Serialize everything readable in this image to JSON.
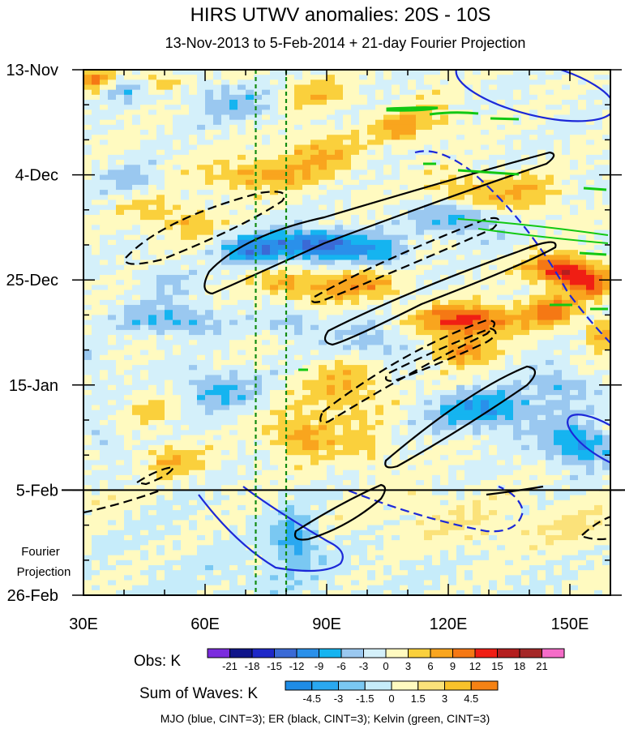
{
  "chart_data": {
    "type": "heatmap",
    "title": "HIRS UTWV anomalies: 20S - 10S",
    "subtitle": "13-Nov-2013 to 5-Feb-2014 + 21-day Fourier Projection",
    "x_axis": {
      "unit": "longitude",
      "range": [
        30,
        160
      ],
      "ticks": [
        {
          "value": 30,
          "label": "30E"
        },
        {
          "value": 60,
          "label": "60E"
        },
        {
          "value": 90,
          "label": "90E"
        },
        {
          "value": 120,
          "label": "120E"
        },
        {
          "value": 150,
          "label": "150E"
        }
      ]
    },
    "y_axis": {
      "unit": "day index from 13-Nov-2013",
      "range": [
        0,
        105
      ],
      "ticks": [
        {
          "value": 0,
          "label": "13-Nov"
        },
        {
          "value": 21,
          "label": "4-Dec"
        },
        {
          "value": 42,
          "label": "25-Dec"
        },
        {
          "value": 63,
          "label": "15-Jan"
        },
        {
          "value": 84,
          "label": "5-Feb"
        },
        {
          "value": 105,
          "label": "26-Feb"
        }
      ]
    },
    "projection_start_day": 84,
    "projection_label_line1": "Fourier",
    "projection_label_line2": "Projection",
    "reference_longitudes": [
      72.5,
      80
    ],
    "obs_field": {
      "colorbar_title": "Obs: K",
      "levels": [
        -21,
        -18,
        -15,
        -12,
        -9,
        -6,
        -3,
        0,
        3,
        6,
        9,
        12,
        15,
        18,
        21
      ],
      "colors": [
        "#7b2cde",
        "#0f148a",
        "#1e28c8",
        "#3a6ad6",
        "#2a90ea",
        "#15b4f0",
        "#9ac8f0",
        "#d4f0fa",
        "#fffac0",
        "#fad03c",
        "#f9a51e",
        "#f57814",
        "#f01e14",
        "#b41e1e",
        "#a52828",
        "#f56cc8"
      ],
      "features": [
        {
          "lon": 33,
          "day": 2,
          "lon_w": 4,
          "day_w": 1.8,
          "amp": 9
        },
        {
          "lon": 40,
          "day": 4,
          "lon_w": 5,
          "day_w": 2,
          "amp": -5
        },
        {
          "lon": 50,
          "day": 2.5,
          "lon_w": 6,
          "day_w": 1.8,
          "amp": 6
        },
        {
          "lon": 62,
          "day": 5,
          "lon_w": 10,
          "day_w": 3,
          "amp": -3
        },
        {
          "lon": 88,
          "day": 5,
          "lon_w": 8,
          "day_w": 3,
          "amp": 5
        },
        {
          "lon": 70,
          "day": 8,
          "lon_w": 10,
          "day_w": 3,
          "amp": -4
        },
        {
          "lon": 88,
          "day": 17,
          "lon_w": 10,
          "day_w": 5,
          "amp": 6
        },
        {
          "lon": 72,
          "day": 21,
          "lon_w": 12,
          "day_w": 3,
          "amp": 7
        },
        {
          "lon": 108,
          "day": 12,
          "lon_w": 6,
          "day_w": 3,
          "amp": 6
        },
        {
          "lon": 116,
          "day": 10,
          "lon_w": 8,
          "day_w": 3,
          "amp": 4
        },
        {
          "lon": 55,
          "day": 30,
          "lon_w": 8,
          "day_w": 3.5,
          "amp": 5
        },
        {
          "lon": 45,
          "day": 28,
          "lon_w": 6,
          "day_w": 3,
          "amp": 3
        },
        {
          "lon": 42,
          "day": 22,
          "lon_w": 7,
          "day_w": 3,
          "amp": -4
        },
        {
          "lon": 88,
          "day": 35,
          "lon_w": 12,
          "day_w": 3,
          "amp": -14
        },
        {
          "lon": 72,
          "day": 36,
          "lon_w": 8,
          "day_w": 3,
          "amp": -9
        },
        {
          "lon": 122,
          "day": 30,
          "lon_w": 10,
          "day_w": 3,
          "amp": -7
        },
        {
          "lon": 104,
          "day": 37,
          "lon_w": 7,
          "day_w": 3,
          "amp": -6
        },
        {
          "lon": 125,
          "day": 24,
          "lon_w": 10,
          "day_w": 3,
          "amp": 6
        },
        {
          "lon": 140,
          "day": 25,
          "lon_w": 8,
          "day_w": 4,
          "amp": 5
        },
        {
          "lon": 148,
          "day": 40,
          "lon_w": 8,
          "day_w": 3,
          "amp": 14
        },
        {
          "lon": 155,
          "day": 43,
          "lon_w": 6,
          "day_w": 3,
          "amp": 10
        },
        {
          "lon": 125,
          "day": 50,
          "lon_w": 12,
          "day_w": 3,
          "amp": 14
        },
        {
          "lon": 145,
          "day": 48,
          "lon_w": 6,
          "day_w": 3,
          "amp": 10
        },
        {
          "lon": 158,
          "day": 53,
          "lon_w": 4,
          "day_w": 3,
          "amp": 8
        },
        {
          "lon": 96,
          "day": 43,
          "lon_w": 12,
          "day_w": 3,
          "amp": 8
        },
        {
          "lon": 80,
          "day": 43,
          "lon_w": 7,
          "day_w": 3,
          "amp": 6
        },
        {
          "lon": 50,
          "day": 42,
          "lon_w": 6,
          "day_w": 3,
          "amp": -4
        },
        {
          "lon": 52,
          "day": 50,
          "lon_w": 12,
          "day_w": 3,
          "amp": -7
        },
        {
          "lon": 82,
          "day": 51,
          "lon_w": 6,
          "day_w": 3,
          "amp": -5
        },
        {
          "lon": 102,
          "day": 55,
          "lon_w": 10,
          "day_w": 4,
          "amp": -5
        },
        {
          "lon": 123,
          "day": 56,
          "lon_w": 8,
          "day_w": 3,
          "amp": 9
        },
        {
          "lon": 130,
          "day": 68,
          "lon_w": 15,
          "day_w": 4,
          "amp": -9
        },
        {
          "lon": 148,
          "day": 63,
          "lon_w": 7,
          "day_w": 3,
          "amp": -6
        },
        {
          "lon": 152,
          "day": 75,
          "lon_w": 8,
          "day_w": 4,
          "amp": -10
        },
        {
          "lon": 95,
          "day": 64,
          "lon_w": 10,
          "day_w": 6,
          "amp": 6
        },
        {
          "lon": 84,
          "day": 73,
          "lon_w": 8,
          "day_w": 4,
          "amp": 8
        },
        {
          "lon": 100,
          "day": 76,
          "lon_w": 6,
          "day_w": 4,
          "amp": 4
        },
        {
          "lon": 63,
          "day": 64,
          "lon_w": 9,
          "day_w": 4,
          "amp": -7
        },
        {
          "lon": 46,
          "day": 68,
          "lon_w": 6,
          "day_w": 3,
          "amp": 4
        },
        {
          "lon": 52,
          "day": 78,
          "lon_w": 7,
          "day_w": 3,
          "amp": 6
        },
        {
          "lon": 35,
          "day": 74,
          "lon_w": 4,
          "day_w": 3,
          "amp": -4
        },
        {
          "lon": 32,
          "day": 60,
          "lon_w": 4,
          "day_w": 4,
          "amp": -3
        },
        {
          "lon": 82,
          "day": 94,
          "lon_w": 5,
          "day_w": 5,
          "amp": -9
        },
        {
          "lon": 125,
          "day": 91,
          "lon_w": 25,
          "day_w": 5,
          "amp": 3
        },
        {
          "lon": 152,
          "day": 92,
          "lon_w": 8,
          "day_w": 5,
          "amp": 3
        },
        {
          "lon": 112,
          "day": 86,
          "lon_w": 4,
          "day_w": 2,
          "amp": 3
        },
        {
          "lon": 34,
          "day": 86,
          "lon_w": 4,
          "day_w": 2,
          "amp": 3
        },
        {
          "lon": 75,
          "day": 102,
          "lon_w": 25,
          "day_w": 6,
          "amp": -1.5
        }
      ]
    },
    "sum_of_waves": {
      "colorbar_title": "Sum of Waves: K",
      "levels": [
        -4.5,
        -3,
        -1.5,
        0,
        1.5,
        3,
        4.5
      ],
      "colors": [
        "#1e8ce6",
        "#2aa8f0",
        "#7ac8f2",
        "#c6ecfa",
        "#fffac0",
        "#fbe27a",
        "#f9c22a",
        "#f58214"
      ]
    },
    "legend_note": "MJO (blue, CINT=3); ER (black, CINT=3); Kelvin (green, CINT=3)",
    "contours": {
      "mjo": {
        "color": "#1c28d8",
        "cint": 3
      },
      "er": {
        "color": "#000000",
        "cint": 3
      },
      "kelvin": {
        "color": "#12c812",
        "cint": 3
      }
    }
  }
}
